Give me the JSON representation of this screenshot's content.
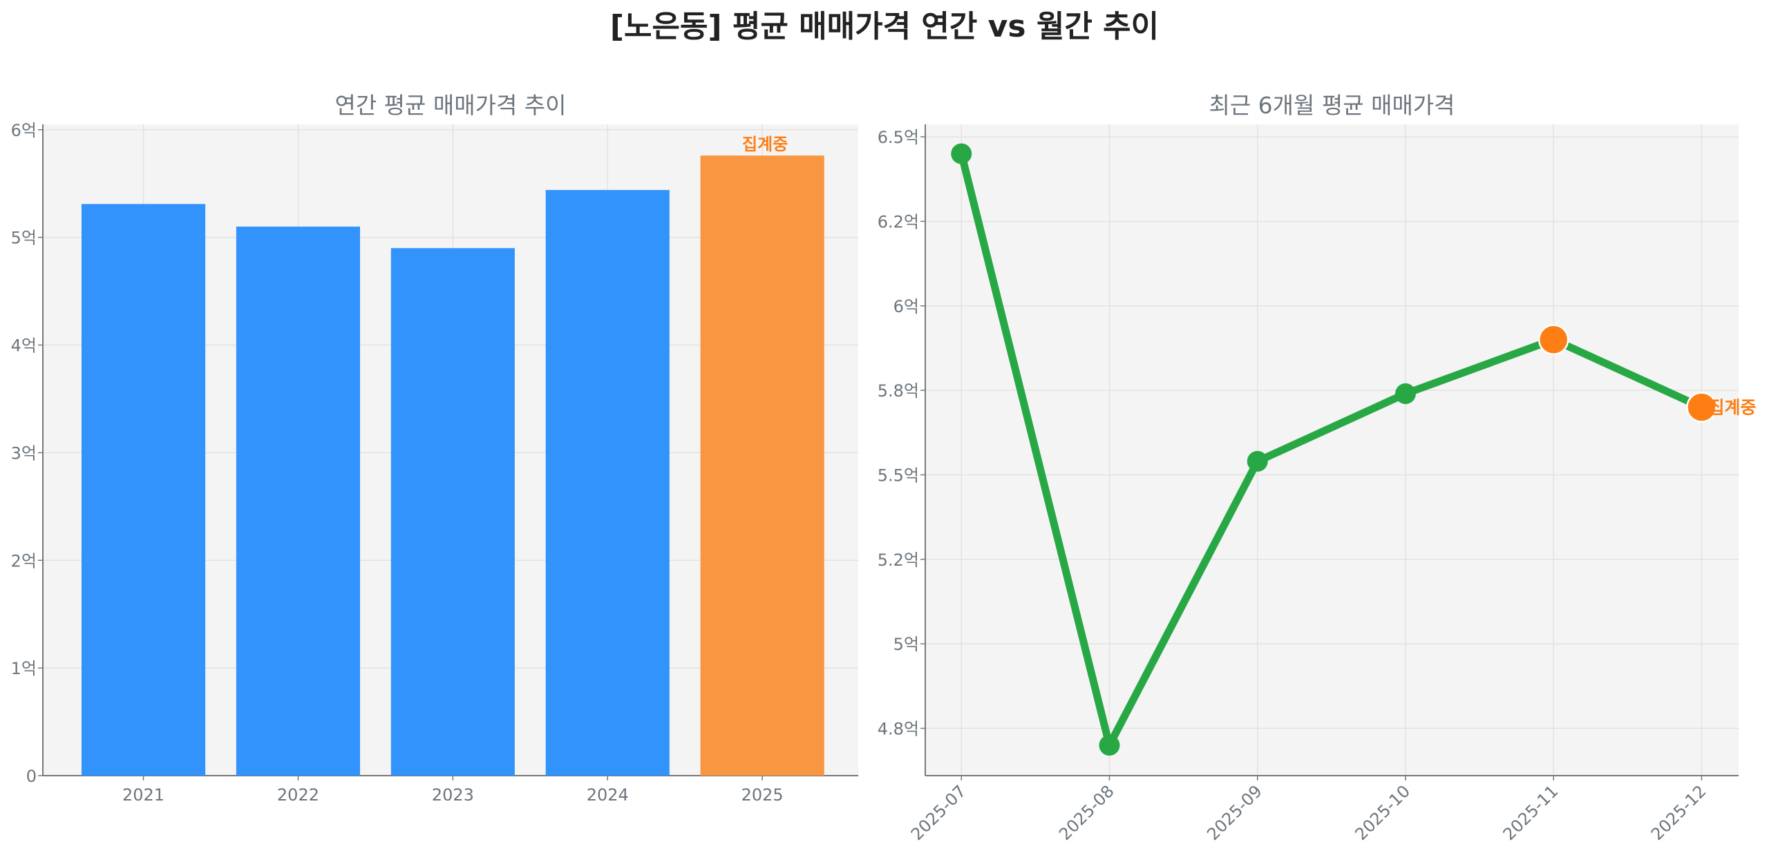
{
  "title": "[노은동] 평균 매매가격 연간 vs 월간 추이",
  "colors": {
    "bar": "#3193fb",
    "bar_partial": "#f99641",
    "line": "#28a745",
    "marker_partial": "#fd7e14",
    "note": "#fd7e14",
    "text": "#6c757d"
  },
  "chart_data": [
    {
      "type": "bar",
      "title": "연간 평균 매매가격 추이",
      "xlabel": "",
      "ylabel": "",
      "categories": [
        "2021",
        "2022",
        "2023",
        "2024",
        "2025"
      ],
      "values": [
        5.31,
        5.1,
        4.9,
        5.44,
        5.76
      ],
      "unit": "억",
      "partial": [
        false,
        false,
        false,
        false,
        true
      ],
      "annotation": "집계중",
      "ylim": [
        0,
        6.05
      ],
      "yticks": [
        0,
        1,
        2,
        3,
        4,
        5,
        6
      ],
      "ytick_labels": [
        "0",
        "1억",
        "2억",
        "3억",
        "4억",
        "5억",
        "6억"
      ],
      "grid": true
    },
    {
      "type": "line",
      "title": "최근 6개월 평균 매매가격",
      "xlabel": "",
      "ylabel": "",
      "categories": [
        "2025-07",
        "2025-08",
        "2025-09",
        "2025-10",
        "2025-11",
        "2025-12"
      ],
      "values": [
        6.45,
        4.7,
        5.54,
        5.74,
        5.9,
        5.7
      ],
      "unit": "억",
      "partial": [
        false,
        false,
        false,
        false,
        true,
        true
      ],
      "annotation": "집계중",
      "ylim": [
        4.61,
        6.537
      ],
      "yticks": [
        4.75,
        5.0,
        5.25,
        5.5,
        5.75,
        6.0,
        6.25,
        6.5
      ],
      "ytick_labels": [
        "4.8억",
        "5억",
        "5.2억",
        "5.5억",
        "5.8억",
        "6억",
        "6.2억",
        "6.5억"
      ],
      "grid": true
    }
  ]
}
